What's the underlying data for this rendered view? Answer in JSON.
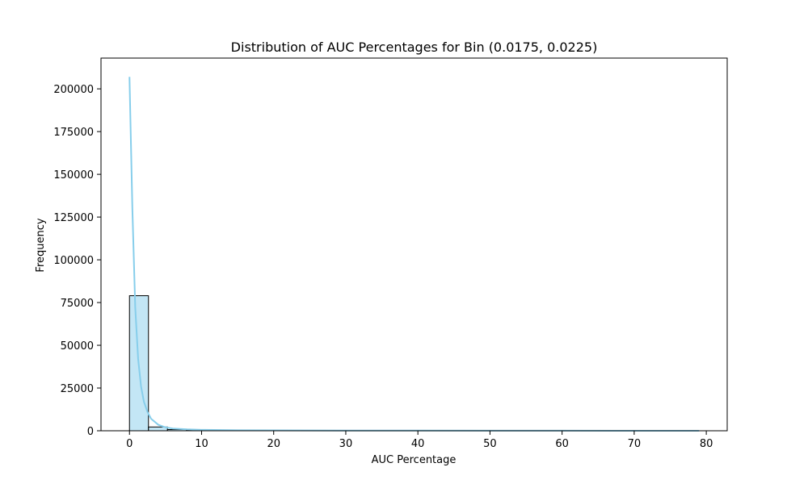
{
  "chart_data": {
    "type": "bar",
    "title": "Distribution of AUC Percentages for Bin (0.0175, 0.0225)",
    "xlabel": "AUC Percentage",
    "ylabel": "Frequency",
    "xlim": [
      -3.95,
      82.9
    ],
    "ylim": [
      0,
      218000
    ],
    "x_ticks": [
      0,
      10,
      20,
      30,
      40,
      50,
      60,
      70,
      80
    ],
    "y_ticks": [
      0,
      25000,
      50000,
      75000,
      100000,
      125000,
      150000,
      175000,
      200000
    ],
    "bin_edges": [
      0,
      2.633,
      5.267,
      7.9,
      10.533,
      13.167,
      15.8,
      18.433,
      21.067,
      23.7,
      26.333,
      28.967,
      31.6,
      34.233,
      36.867,
      39.5,
      42.133,
      44.767,
      47.4,
      50.033,
      52.667,
      55.3,
      57.933,
      60.567,
      63.2,
      65.833,
      68.467,
      71.1,
      73.733,
      76.367,
      79.0
    ],
    "values": [
      79000,
      2200,
      700,
      400,
      250,
      180,
      130,
      100,
      80,
      65,
      55,
      45,
      38,
      32,
      28,
      24,
      20,
      17,
      15,
      13,
      11,
      10,
      9,
      8,
      7,
      6,
      5,
      4,
      3,
      2
    ],
    "kde": {
      "x": [
        0,
        0.4,
        0.8,
        1.2,
        1.6,
        2,
        2.5,
        3,
        4,
        5,
        6,
        8,
        10,
        15,
        20,
        30,
        40,
        50,
        60,
        70,
        79
      ],
      "y": [
        207000,
        130000,
        72000,
        42000,
        26000,
        17000,
        11000,
        7000,
        3500,
        2000,
        1300,
        800,
        550,
        320,
        220,
        130,
        90,
        60,
        40,
        25,
        15
      ]
    },
    "grid": false,
    "colors": {
      "bar_fill": "#87ceeb",
      "bar_fill_opacity": 0.5,
      "bar_edge": "#000000",
      "kde_line": "#87ceeb"
    }
  }
}
